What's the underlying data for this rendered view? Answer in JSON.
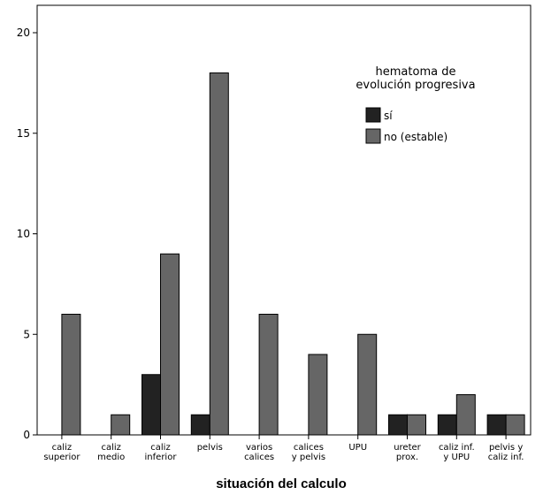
{
  "chart_data": {
    "type": "bar",
    "xlabel": "situación del calculo",
    "ylabel": "",
    "ylim": [
      0,
      20
    ],
    "yticks": [
      0,
      5,
      10,
      15,
      20
    ],
    "grid": false,
    "legend": {
      "title_lines": [
        "hematoma de",
        "evolución progresiva"
      ],
      "placement": "top-right"
    },
    "categories": [
      [
        "caliz",
        "superior"
      ],
      [
        "caliz",
        "medio"
      ],
      [
        "caliz",
        "inferior"
      ],
      [
        "pelvis"
      ],
      [
        "varios",
        "calices"
      ],
      [
        "calices",
        "y pelvis"
      ],
      [
        "UPU"
      ],
      [
        "ureter",
        "prox."
      ],
      [
        "caliz inf.",
        "y UPU"
      ],
      [
        "pelvis y",
        "caliz inf."
      ]
    ],
    "series": [
      {
        "name": "sí",
        "color": "#222222",
        "values": [
          0,
          0,
          3,
          1,
          0,
          0,
          0,
          1,
          1,
          1
        ]
      },
      {
        "name": "no (estable)",
        "color": "#666666",
        "values": [
          6,
          1,
          9,
          18,
          6,
          4,
          5,
          1,
          2,
          1
        ]
      }
    ]
  }
}
